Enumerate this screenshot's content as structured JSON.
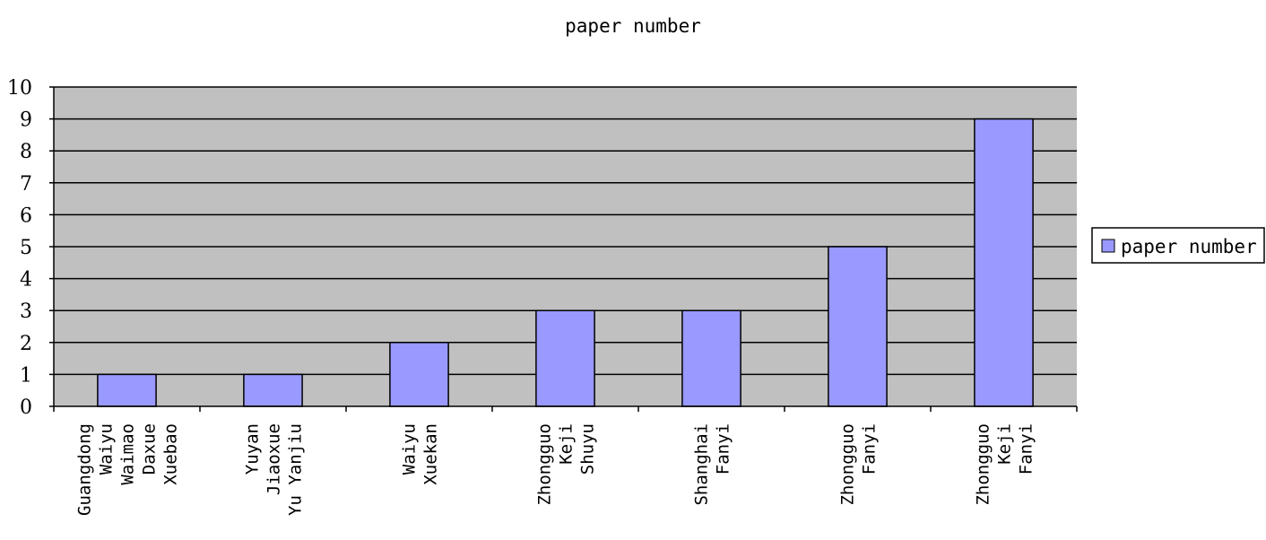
{
  "chart_data": {
    "type": "bar",
    "title": "paper number",
    "xlabel": "",
    "ylabel": "",
    "ylim": [
      0,
      10
    ],
    "yticks": [
      0,
      1,
      2,
      3,
      4,
      5,
      6,
      7,
      8,
      9,
      10
    ],
    "grid": true,
    "legend_position": "right",
    "categories": [
      [
        "Guangdong",
        "Waiyu",
        "Waimao",
        "Daxue",
        "Xuebao"
      ],
      [
        "Yuyan",
        "Jiaoxue",
        "Yu Yanjiu"
      ],
      [
        "Waiyu",
        "Xuekan"
      ],
      [
        "Zhongguo",
        "Keji",
        "Shuyu"
      ],
      [
        "Shanghai",
        "Fanyi"
      ],
      [
        "Zhongguo",
        "Fanyi"
      ],
      [
        "Zhongguo",
        "Keji",
        "Fanyi"
      ]
    ],
    "series": [
      {
        "name": "paper number",
        "values": [
          1,
          1,
          2,
          3,
          3,
          5,
          9
        ]
      }
    ],
    "colors": {
      "bar": "#9999ff",
      "plot_background": "#c0c0c0",
      "gridline": "#000000"
    }
  }
}
